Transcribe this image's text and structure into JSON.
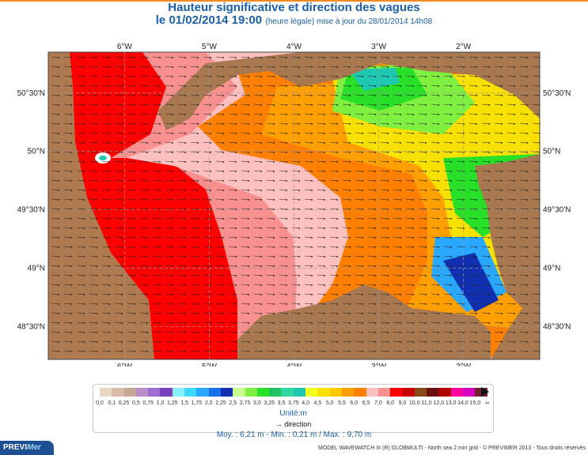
{
  "header": {
    "title": "Hauteur significative et direction des vagues",
    "date_line": "le 01/02/2014 19:00",
    "update_line": "(heure légale) mise à jour du 28/01/2014 14h08"
  },
  "map": {
    "lon_labels": [
      "6°W",
      "5°W",
      "4°W",
      "3°W",
      "2°W"
    ],
    "lat_labels": [
      "50°30'N",
      "50°N",
      "49°30'N",
      "49°N",
      "48°30'N"
    ],
    "lon_range": [
      -6.9,
      -1.1
    ],
    "lat_range": [
      48.22,
      50.85
    ],
    "lon_ticks": [
      -6,
      -5,
      -4,
      -3,
      -2
    ],
    "lat_ticks": [
      50.5,
      50,
      49.5,
      49,
      48.5
    ],
    "arrow_direction": "toward east",
    "colors": {
      "land": "#a87850",
      "sea_frame": "#b07a50"
    }
  },
  "legend": {
    "scale_labels": [
      "0,0",
      "0,1",
      "0,25",
      "0,5",
      "0,75",
      "1,0",
      "1,25",
      "1,5",
      "1,75",
      "2,0",
      "2,25",
      "2,5",
      "2,75",
      "3,0",
      "3,25",
      "3,5",
      "3,75",
      "4,0",
      "4,5",
      "5,0",
      "5,5",
      "6,0",
      "6,5",
      "7,0",
      "8,0",
      "9,0",
      "10,0",
      "11,0",
      "12,0",
      "13,0",
      "14,0",
      "15,0",
      "∞"
    ],
    "colors": [
      "#e8d6c4",
      "#d8bca8",
      "#c9a694",
      "#b98cc9",
      "#9a6fcf",
      "#7a40b8",
      "#88f0ff",
      "#3cd8ff",
      "#2aa8ff",
      "#1870e8",
      "#1030b0",
      "#c8ff90",
      "#80f040",
      "#28e028",
      "#20c060",
      "#30d8a0",
      "#1ec8b0",
      "#f0ff20",
      "#f8e000",
      "#ffc800",
      "#ffa000",
      "#ff8000",
      "#ffc0c0",
      "#f89090",
      "#ff0000",
      "#c80000",
      "#8a4a18",
      "#6a1010",
      "#b00000",
      "#ff00a0",
      "#d800c0",
      "#702030"
    ],
    "unit_label": "Unité:m",
    "direction_label": "→ direction"
  },
  "stats": "Moy. : 6,21 m  -  Min. : 0,21 m / Max. : 9,70 m",
  "logo": {
    "prefix": "PREVI",
    "suffix": "Mer"
  },
  "credit": "MODEL WAVEWATCH III (R) GLOBMULTI - North sea 2 min grid - © PREVIMER 2013 - Tous droits réservés"
}
